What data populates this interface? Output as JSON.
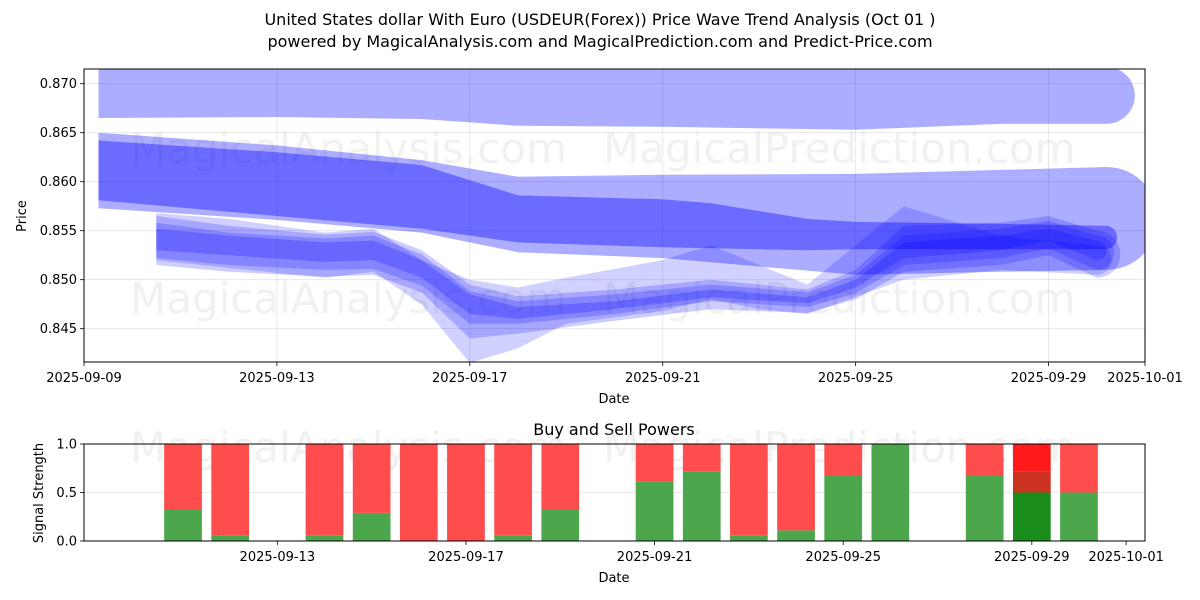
{
  "header": {
    "title": "United States dollar With Euro (USDEUR(Forex)) Price Wave Trend Analysis (Oct 01 )",
    "subtitle": "powered by MagicalAnalysis.com and MagicalPrediction.com and Predict-Price.com"
  },
  "watermarks": [
    "MagicalAnalysis.com",
    "MagicalPrediction.com"
  ],
  "chart_data": [
    {
      "type": "area",
      "title": "",
      "xlabel": "Date",
      "ylabel": "Price",
      "xlim": [
        "2025-09-09",
        "2025-10-01"
      ],
      "ylim": [
        0.8416,
        0.8715
      ],
      "grid": true,
      "x_ticks": [
        "2025-09-09",
        "2025-09-13",
        "2025-09-17",
        "2025-09-21",
        "2025-09-25",
        "2025-09-29",
        "2025-10-01"
      ],
      "y_ticks": [
        "0.845",
        "0.850",
        "0.855",
        "0.860",
        "0.865",
        "0.870"
      ],
      "color": "#0000ff",
      "bands": [
        {
          "name": "long-wave-upper",
          "opacity": 0.32,
          "x": [
            "2025-09-09.3",
            "2025-09-13",
            "2025-09-16",
            "2025-09-18",
            "2025-09-21",
            "2025-09-25",
            "2025-09-28",
            "2025-09-30.2"
          ],
          "upper": [
            0.8717,
            0.8717,
            0.8717,
            0.8717,
            0.8717,
            0.8717,
            0.8717,
            0.8717
          ],
          "lower": [
            0.8665,
            0.8666,
            0.8664,
            0.8657,
            0.8656,
            0.8653,
            0.8659,
            0.8659
          ]
        },
        {
          "name": "mid-wave-light",
          "opacity": 0.32,
          "x": [
            "2025-09-09.3",
            "2025-09-13",
            "2025-09-16",
            "2025-09-18",
            "2025-09-21",
            "2025-09-25",
            "2025-09-28",
            "2025-09-30.2"
          ],
          "upper": [
            0.865,
            0.8637,
            0.8622,
            0.8605,
            0.8607,
            0.8608,
            0.8612,
            0.8615
          ],
          "lower": [
            0.8573,
            0.8561,
            0.8548,
            0.8528,
            0.8522,
            0.8505,
            0.8508,
            0.851
          ]
        },
        {
          "name": "mid-wave-dark",
          "opacity": 0.38,
          "x": [
            "2025-09-09.3",
            "2025-09-13",
            "2025-09-16",
            "2025-09-18",
            "2025-09-21",
            "2025-09-22",
            "2025-09-24",
            "2025-09-25",
            "2025-09-28",
            "2025-09-30.2"
          ],
          "upper": [
            0.8642,
            0.863,
            0.8617,
            0.8586,
            0.8582,
            0.8578,
            0.8562,
            0.8559,
            0.8557,
            0.8555
          ],
          "lower": [
            0.8581,
            0.8565,
            0.8552,
            0.8538,
            0.8533,
            0.8532,
            0.853,
            0.8531,
            0.8531,
            0.8531
          ]
        },
        {
          "name": "short-wave-1",
          "opacity": 0.2,
          "x": [
            "2025-09-10.5",
            "2025-09-12",
            "2025-09-14",
            "2025-09-15",
            "2025-09-16",
            "2025-09-17",
            "2025-09-18",
            "2025-09-20",
            "2025-09-22",
            "2025-09-24",
            "2025-09-25",
            "2025-09-26",
            "2025-09-28",
            "2025-09-29",
            "2025-09-30"
          ],
          "upper": [
            0.8565,
            0.8555,
            0.8546,
            0.8549,
            0.853,
            0.8495,
            0.8483,
            0.849,
            0.85,
            0.849,
            0.851,
            0.8555,
            0.8558,
            0.8565,
            0.855
          ],
          "lower": [
            0.8515,
            0.8508,
            0.8503,
            0.8505,
            0.8487,
            0.844,
            0.8445,
            0.8458,
            0.847,
            0.8466,
            0.848,
            0.8508,
            0.8515,
            0.8525,
            0.8502
          ]
        },
        {
          "name": "short-wave-2",
          "opacity": 0.2,
          "x": [
            "2025-09-10.5",
            "2025-09-12",
            "2025-09-14",
            "2025-09-15",
            "2025-09-16",
            "2025-09-17",
            "2025-09-18",
            "2025-09-20",
            "2025-09-22",
            "2025-09-24",
            "2025-09-25",
            "2025-09-26",
            "2025-09-28",
            "2025-09-29",
            "2025-09-30"
          ],
          "upper": [
            0.8558,
            0.8548,
            0.8542,
            0.8545,
            0.8526,
            0.8488,
            0.8478,
            0.8485,
            0.8495,
            0.8487,
            0.8505,
            0.8545,
            0.8552,
            0.856,
            0.8545
          ],
          "lower": [
            0.8522,
            0.8515,
            0.851,
            0.8511,
            0.8494,
            0.8455,
            0.8455,
            0.8465,
            0.8478,
            0.8472,
            0.8486,
            0.8515,
            0.8522,
            0.8532,
            0.851
          ]
        },
        {
          "name": "short-wave-3",
          "opacity": 0.18,
          "x": [
            "2025-09-10.5",
            "2025-09-12",
            "2025-09-14",
            "2025-09-15",
            "2025-09-16",
            "2025-09-17",
            "2025-09-18",
            "2025-09-19",
            "2025-09-21",
            "2025-09-22",
            "2025-09-23",
            "2025-09-24",
            "2025-09-26",
            "2025-09-28",
            "2025-09-30"
          ],
          "upper": [
            0.8568,
            0.8562,
            0.8548,
            0.8552,
            0.852,
            0.85,
            0.8492,
            0.8502,
            0.852,
            0.8535,
            0.8515,
            0.8495,
            0.8575,
            0.8545,
            0.8535
          ],
          "lower": [
            0.852,
            0.8512,
            0.8502,
            0.8508,
            0.8475,
            0.8415,
            0.843,
            0.8455,
            0.8468,
            0.848,
            0.847,
            0.8465,
            0.85,
            0.851,
            0.8505
          ]
        },
        {
          "name": "short-wave-4",
          "opacity": 0.22,
          "x": [
            "2025-09-10.5",
            "2025-09-12",
            "2025-09-14",
            "2025-09-15",
            "2025-09-16",
            "2025-09-17",
            "2025-09-18",
            "2025-09-20",
            "2025-09-22",
            "2025-09-24",
            "2025-09-25",
            "2025-09-26",
            "2025-09-28",
            "2025-09-29",
            "2025-09-30"
          ],
          "upper": [
            0.8552,
            0.8545,
            0.8538,
            0.854,
            0.852,
            0.8485,
            0.8472,
            0.8478,
            0.849,
            0.8482,
            0.85,
            0.8538,
            0.8545,
            0.8552,
            0.854
          ],
          "lower": [
            0.853,
            0.8525,
            0.8518,
            0.852,
            0.8502,
            0.8465,
            0.846,
            0.847,
            0.8482,
            0.8476,
            0.8492,
            0.8522,
            0.853,
            0.854,
            0.852
          ]
        }
      ]
    },
    {
      "type": "bar",
      "title": "Buy and Sell Powers",
      "xlabel": "Date",
      "ylabel": "Signal Strength",
      "xlim": [
        "2025-09-08.9",
        "2025-10-01.4"
      ],
      "ylim": [
        0,
        1
      ],
      "grid": true,
      "x_ticks": [
        "2025-09-13",
        "2025-09-17",
        "2025-09-21",
        "2025-09-25",
        "2025-09-29",
        "2025-10-01"
      ],
      "y_ticks": [
        "0.0",
        "0.5",
        "1.0"
      ],
      "buy_color": "#4ca64c",
      "sell_color": "#ff4c4c",
      "highlight_buy_color": "#1a8c1a",
      "highlight_mid_color": "#cc3322",
      "highlight_sell_color": "#ff1a1a",
      "categories": [
        "2025-09-11",
        "2025-09-12",
        "2025-09-14",
        "2025-09-15",
        "2025-09-16",
        "2025-09-17",
        "2025-09-18",
        "2025-09-19",
        "2025-09-21",
        "2025-09-22",
        "2025-09-23",
        "2025-09-24",
        "2025-09-25",
        "2025-09-26",
        "2025-09-28",
        "2025-09-29",
        "2025-09-30"
      ],
      "series": [
        {
          "name": "Buy",
          "values": [
            0.33,
            0.06,
            0.06,
            0.29,
            0.0,
            0.0,
            0.06,
            0.33,
            0.61,
            0.72,
            0.06,
            0.11,
            0.67,
            1.0,
            0.67,
            0.5,
            0.5
          ]
        },
        {
          "name": "Sell",
          "values": [
            0.67,
            0.94,
            0.94,
            0.71,
            1.0,
            1.0,
            0.94,
            0.67,
            0.39,
            0.28,
            0.94,
            0.89,
            0.33,
            0.0,
            0.33,
            0.5,
            0.5
          ]
        }
      ],
      "highlight": {
        "date": "2025-09-29",
        "mid_band": [
          0.5,
          0.72
        ]
      }
    }
  ]
}
